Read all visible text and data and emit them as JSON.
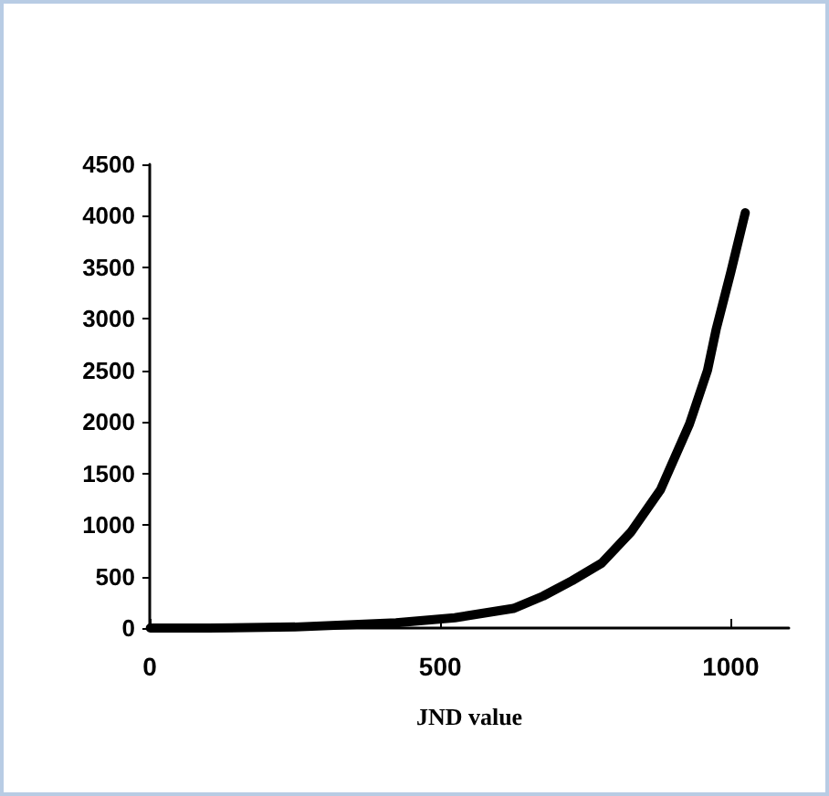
{
  "chart_data": {
    "type": "line",
    "xlabel": "JND value",
    "x": [
      1,
      100,
      250,
      424,
      525,
      626,
      677,
      727,
      778,
      828,
      879,
      929,
      960,
      975,
      1000,
      1025
    ],
    "series": [
      {
        "color": "#000000",
        "values": [
          0,
          0,
          10,
          50,
          100,
          190,
          310,
          460,
          630,
          930,
          1340,
          1980,
          2500,
          2900,
          3450,
          4030
        ]
      }
    ],
    "xlim": [
      0,
      1100
    ],
    "xticks": [
      0,
      500,
      1000
    ],
    "ylim": [
      0,
      4500
    ],
    "yticks": [
      0,
      500,
      1000,
      1500,
      2000,
      2500,
      3000,
      3500,
      4000,
      4500
    ],
    "grid": false,
    "marker": "none",
    "line_style": "solid"
  }
}
